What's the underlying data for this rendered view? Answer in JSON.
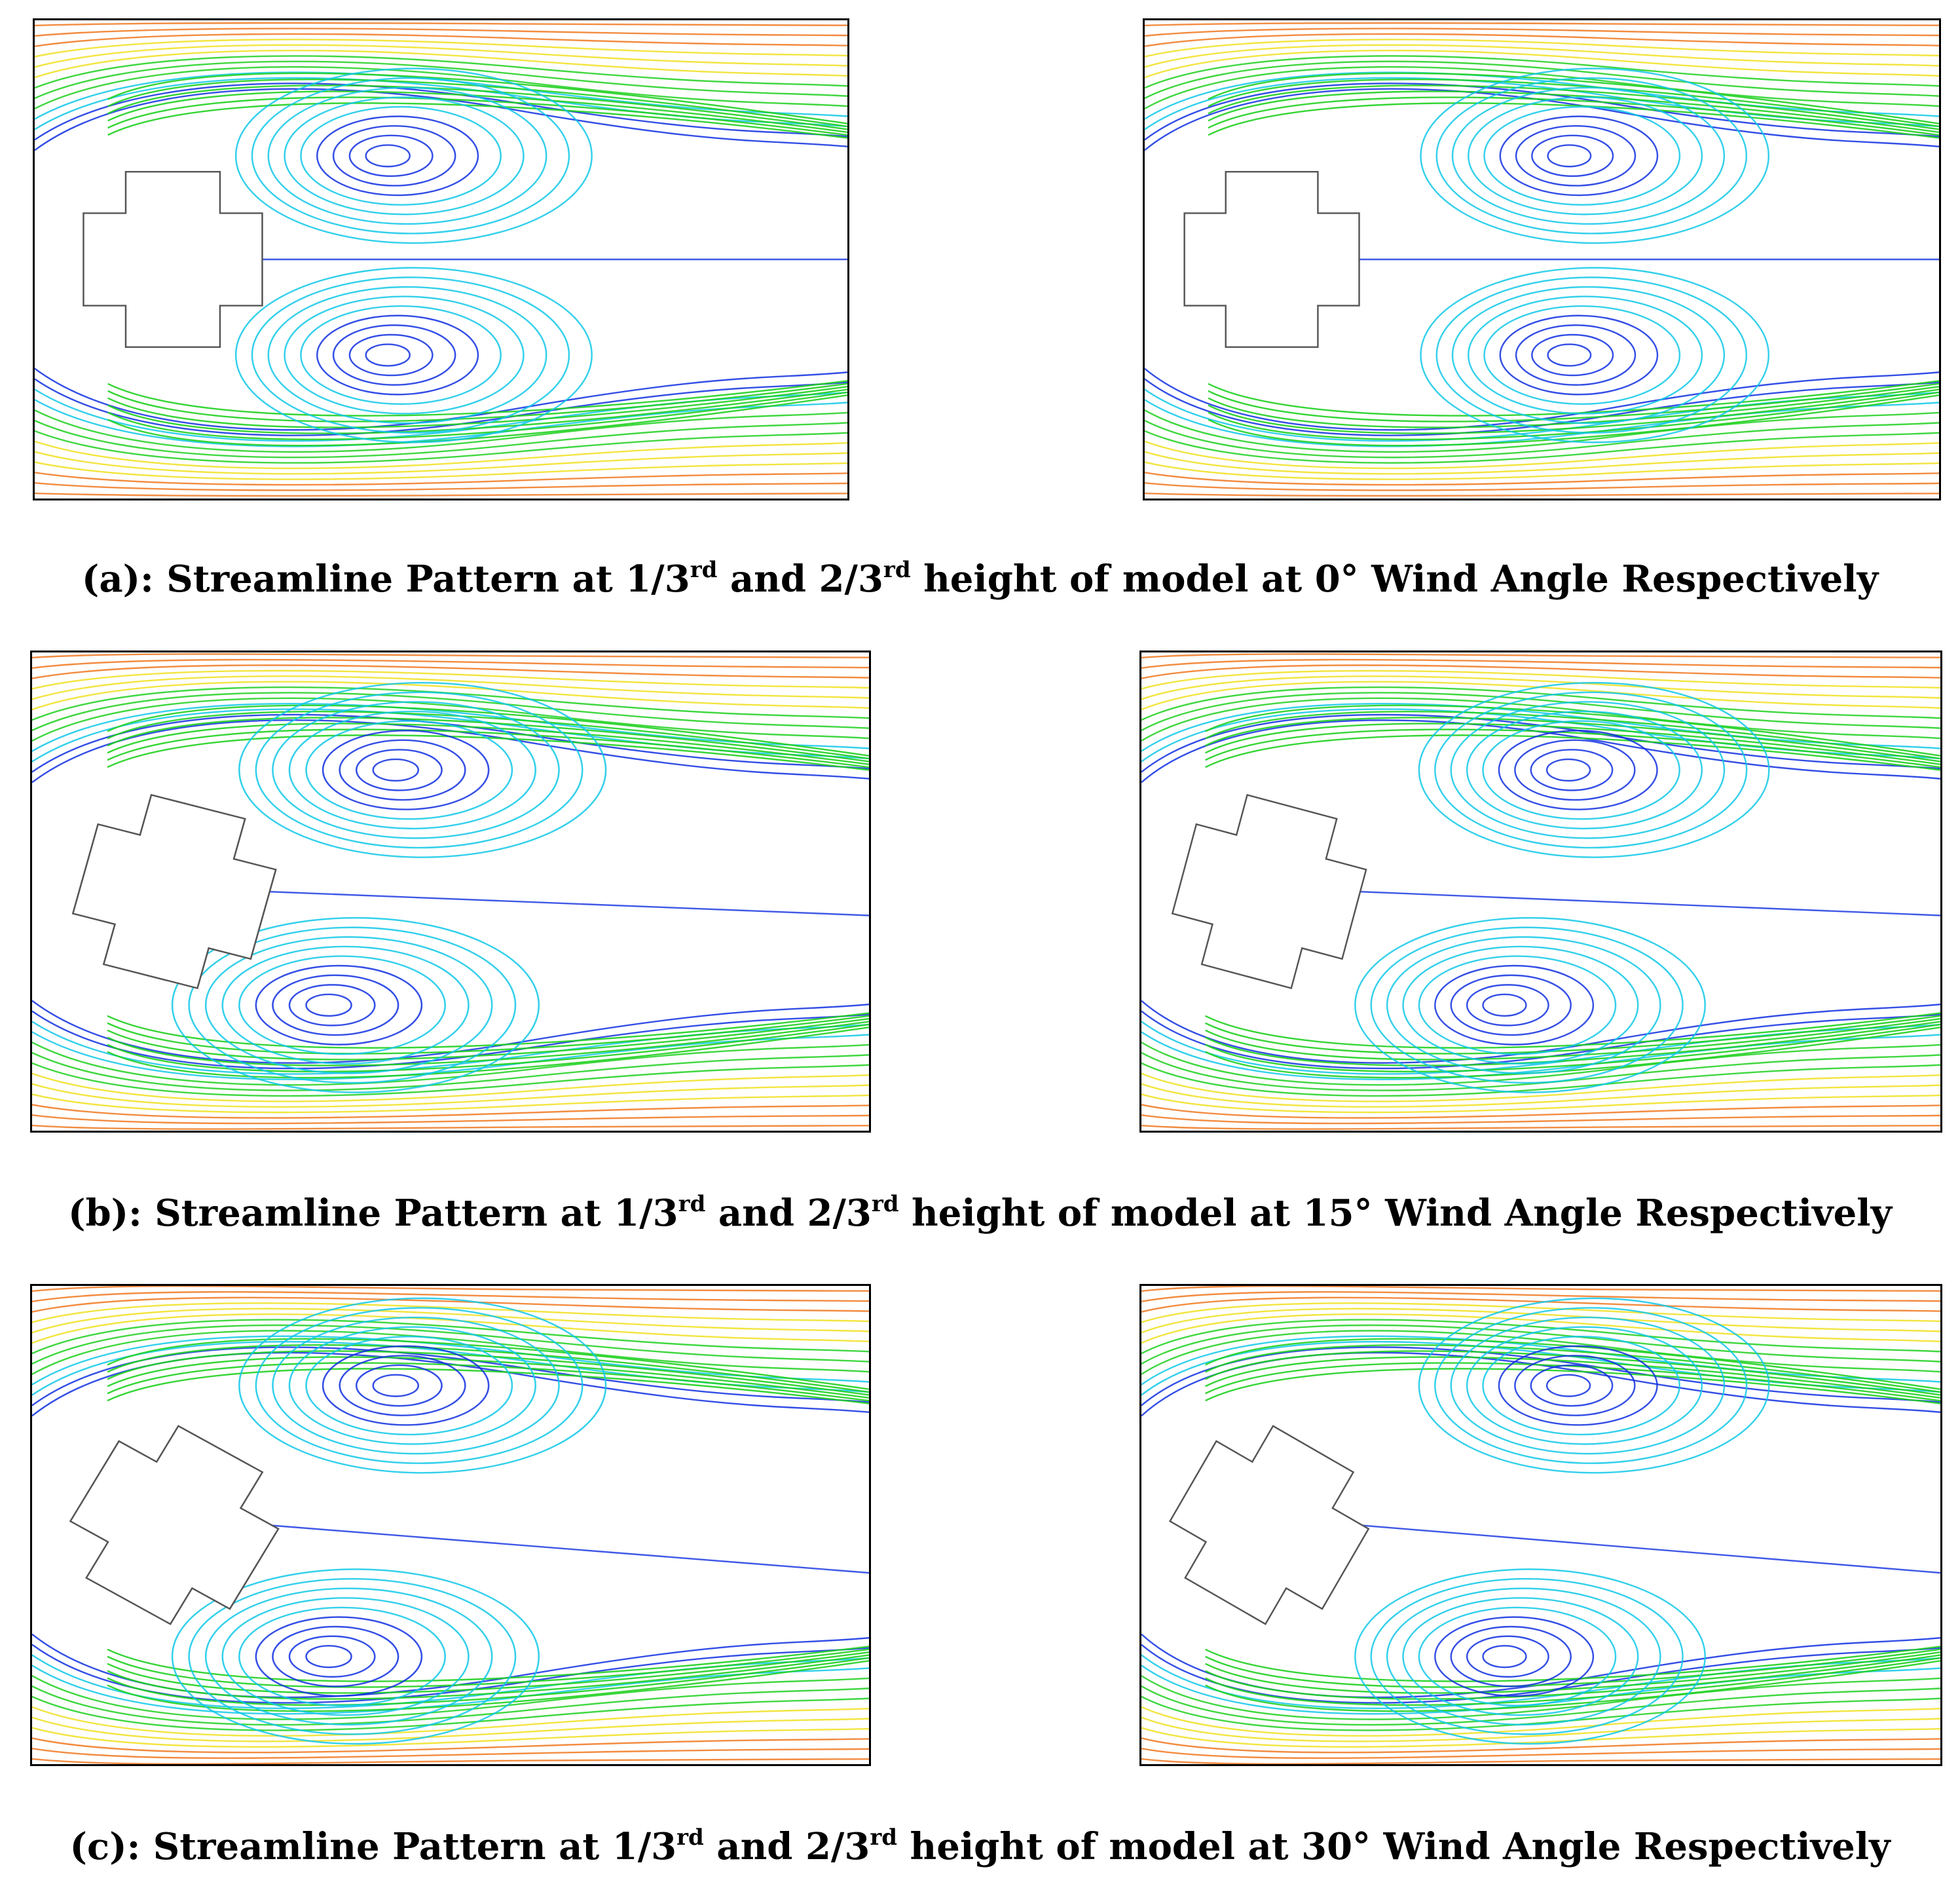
{
  "rows": [
    {
      "caption": {
        "label": "(a):",
        "t1": " Streamline Pattern at 1/3",
        "s1": "rd",
        "t2": " and 2/3",
        "s2": "rd",
        "t3": " height of model at 0° Wind Angle Respectively"
      },
      "wind_angle_deg": 0
    },
    {
      "caption": {
        "label": "(b):",
        "t1": " Streamline Pattern at 1/3",
        "s1": "rd",
        "t2": " and 2/3",
        "s2": "rd",
        "t3": " height of model at 15° Wind Angle Respectively"
      },
      "wind_angle_deg": 15
    },
    {
      "caption": {
        "label": "(c):",
        "t1": " Streamline Pattern at 1/3",
        "s1": "rd",
        "t2": " and 2/3",
        "s2": "rd",
        "t3": " height of model at 30° Wind Angle Respectively"
      },
      "wind_angle_deg": 30
    }
  ],
  "colors": {
    "slow": "#1030e0",
    "low": "#10c8e8",
    "mid": "#20d020",
    "high": "#f0e020",
    "fast": "#f07820"
  }
}
